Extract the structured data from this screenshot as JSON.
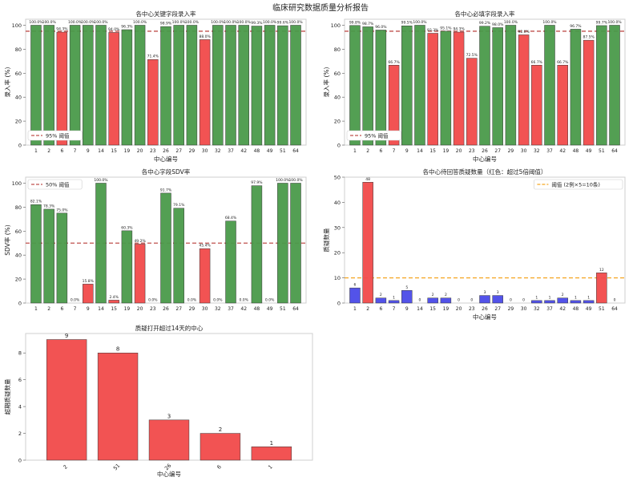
{
  "figure_title": "临床研究数据质量分析报告",
  "colors": {
    "good": "#4a9a4a",
    "bad": "#f24a4a",
    "blue": "#4a4ae8",
    "threshold_red": "#c0504d",
    "threshold_orange": "#f5a623"
  },
  "chart_data": [
    {
      "id": "key_fields",
      "type": "bar",
      "title": "各中心关键字段录入率",
      "xlabel": "中心编号",
      "ylabel": "录入率 (%)",
      "ylim": [
        0,
        105
      ],
      "yticks": [
        0,
        20,
        40,
        60,
        80,
        100
      ],
      "categories": [
        "1",
        "2",
        "6",
        "7",
        "9",
        "14",
        "15",
        "19",
        "20",
        "23",
        "26",
        "27",
        "29",
        "30",
        "32",
        "37",
        "42",
        "48",
        "49",
        "51",
        "64"
      ],
      "values": [
        100.0,
        100.0,
        94.3,
        100.0,
        100.0,
        100.0,
        94.0,
        96.3,
        100.0,
        71.4,
        98.9,
        100.0,
        100.0,
        88.0,
        100.0,
        100.0,
        100.0,
        99.3,
        100.0,
        99.6,
        100.0
      ],
      "labels": [
        "100.0%",
        "100.0%",
        "94.3%",
        "100.0%",
        "100.0%",
        "100.0%",
        "94.0%",
        "96.3%",
        "100.0%",
        "71.4%",
        "98.9%",
        "100.0%",
        "100.0%",
        "88.0%",
        "100.0%",
        "100.0%",
        "100.0%",
        "99.3%",
        "100.0%",
        "99.6%",
        "100.0%"
      ],
      "colors": [
        "good",
        "good",
        "bad",
        "good",
        "good",
        "good",
        "bad",
        "good",
        "good",
        "bad",
        "good",
        "good",
        "good",
        "bad",
        "good",
        "good",
        "good",
        "good",
        "good",
        "good",
        "good"
      ],
      "threshold": 95,
      "threshold_label": "95% 阈值",
      "threshold_color": "threshold_red",
      "legend_position": "lower-left"
    },
    {
      "id": "required_fields",
      "type": "bar",
      "title": "各中心必填字段录入率",
      "xlabel": "中心编号",
      "ylabel": "录入率 (%)",
      "ylim": [
        0,
        105
      ],
      "yticks": [
        0,
        20,
        40,
        60,
        80,
        100
      ],
      "categories": [
        "1",
        "2",
        "6",
        "7",
        "9",
        "14",
        "15",
        "19",
        "20",
        "23",
        "26",
        "27",
        "29",
        "30",
        "32",
        "37",
        "42",
        "48",
        "49",
        "51",
        "64"
      ],
      "values": [
        99.8,
        98.7,
        96.0,
        66.7,
        99.5,
        100.0,
        93.3,
        95.1,
        94.3,
        72.5,
        99.2,
        98.0,
        100.0,
        92.0,
        66.7,
        100.0,
        66.7,
        96.7,
        87.5,
        99.7,
        100.0
      ],
      "labels": [
        "99.8%",
        "98.7%",
        "96.0%",
        "66.7%",
        "99.5%",
        "100.0%",
        "93.3%",
        "95.1%",
        "94.3%",
        "72.5%",
        "99.2%",
        "98.0%",
        "100.0%",
        "92.0%",
        "66.7%",
        "100.0%",
        "66.7%",
        "96.7%",
        "87.5%",
        "99.7%",
        "100.0%"
      ],
      "colors": [
        "good",
        "good",
        "good",
        "bad",
        "good",
        "good",
        "bad",
        "good",
        "bad",
        "bad",
        "good",
        "good",
        "good",
        "bad",
        "bad",
        "good",
        "bad",
        "good",
        "bad",
        "good",
        "good"
      ],
      "threshold": 95,
      "threshold_label": "95% 阈值",
      "threshold_color": "threshold_red",
      "legend_position": "lower-left"
    },
    {
      "id": "sdv_rate",
      "type": "bar",
      "title": "各中心字段SDV率",
      "xlabel": "",
      "ylabel": "SDV率 (%)",
      "ylim": [
        0,
        105
      ],
      "yticks": [
        0,
        20,
        40,
        60,
        80,
        100
      ],
      "categories": [
        "1",
        "2",
        "6",
        "7",
        "9",
        "14",
        "15",
        "19",
        "20",
        "23",
        "26",
        "27",
        "29",
        "30",
        "32",
        "37",
        "42",
        "48",
        "49",
        "51",
        "64"
      ],
      "values": [
        82.1,
        78.3,
        75.0,
        0.0,
        15.8,
        100.0,
        2.4,
        60.3,
        49.2,
        0.0,
        91.7,
        79.1,
        0.0,
        45.4,
        0.0,
        68.4,
        0.0,
        97.9,
        0.0,
        100.0,
        100.0
      ],
      "labels": [
        "82.1%",
        "78.3%",
        "75.0%",
        "0.0%",
        "15.8%",
        "100.0%",
        "2.4%",
        "60.3%",
        "49.2%",
        "0.0%",
        "91.7%",
        "79.1%",
        "0.0%",
        "45.4%",
        "0.0%",
        "68.4%",
        "0.0%",
        "97.9%",
        "0.0%",
        "100.0%",
        "100.0%"
      ],
      "colors": [
        "good",
        "good",
        "good",
        "bad",
        "bad",
        "good",
        "bad",
        "good",
        "bad",
        "bad",
        "good",
        "good",
        "bad",
        "bad",
        "bad",
        "good",
        "bad",
        "good",
        "bad",
        "good",
        "good"
      ],
      "threshold": 50,
      "threshold_label": "50% 阈值",
      "threshold_color": "threshold_red",
      "legend_position": "top-left"
    },
    {
      "id": "pending_queries",
      "type": "bar",
      "title": "各中心待回答质疑数量（红色：超过5倍阈值）",
      "xlabel": "中心编号",
      "ylabel": "质疑数量",
      "ylim": [
        0,
        50
      ],
      "yticks": [
        0,
        10,
        20,
        30,
        40,
        50
      ],
      "categories": [
        "1",
        "2",
        "6",
        "7",
        "9",
        "14",
        "15",
        "19",
        "20",
        "23",
        "26",
        "27",
        "29",
        "30",
        "32",
        "37",
        "42",
        "48",
        "49",
        "51",
        "64"
      ],
      "values": [
        6,
        48,
        2,
        1,
        5,
        0,
        2,
        2,
        0,
        0,
        3,
        3,
        0,
        0,
        1,
        1,
        2,
        1,
        1,
        12,
        0
      ],
      "labels": [
        "6",
        "48",
        "2",
        "1",
        "5",
        "0",
        "2",
        "2",
        "0",
        "0",
        "3",
        "3",
        "0",
        "0",
        "1",
        "1",
        "2",
        "1",
        "1",
        "12",
        "0"
      ],
      "colors": [
        "blue",
        "bad",
        "blue",
        "blue",
        "blue",
        "blue",
        "blue",
        "blue",
        "blue",
        "blue",
        "blue",
        "blue",
        "blue",
        "blue",
        "blue",
        "blue",
        "blue",
        "blue",
        "blue",
        "bad",
        "blue"
      ],
      "threshold": 10,
      "threshold_label": "阈值 (2例×5=10条)",
      "threshold_color": "threshold_orange",
      "legend_position": "top-right"
    },
    {
      "id": "overdue_queries",
      "type": "bar",
      "title": "质疑打开超过14天的中心",
      "xlabel": "中心编号",
      "ylabel": "超期质疑数量",
      "ylim": [
        0,
        9.45
      ],
      "yticks": [
        0,
        2,
        4,
        6,
        8
      ],
      "categories": [
        "2",
        "51",
        "26",
        "6",
        "1"
      ],
      "values": [
        9,
        8,
        3,
        2,
        1
      ],
      "labels": [
        "9",
        "8",
        "3",
        "2",
        "1"
      ],
      "colors": [
        "bad",
        "bad",
        "bad",
        "bad",
        "bad"
      ],
      "rotate_ticks": true
    }
  ]
}
